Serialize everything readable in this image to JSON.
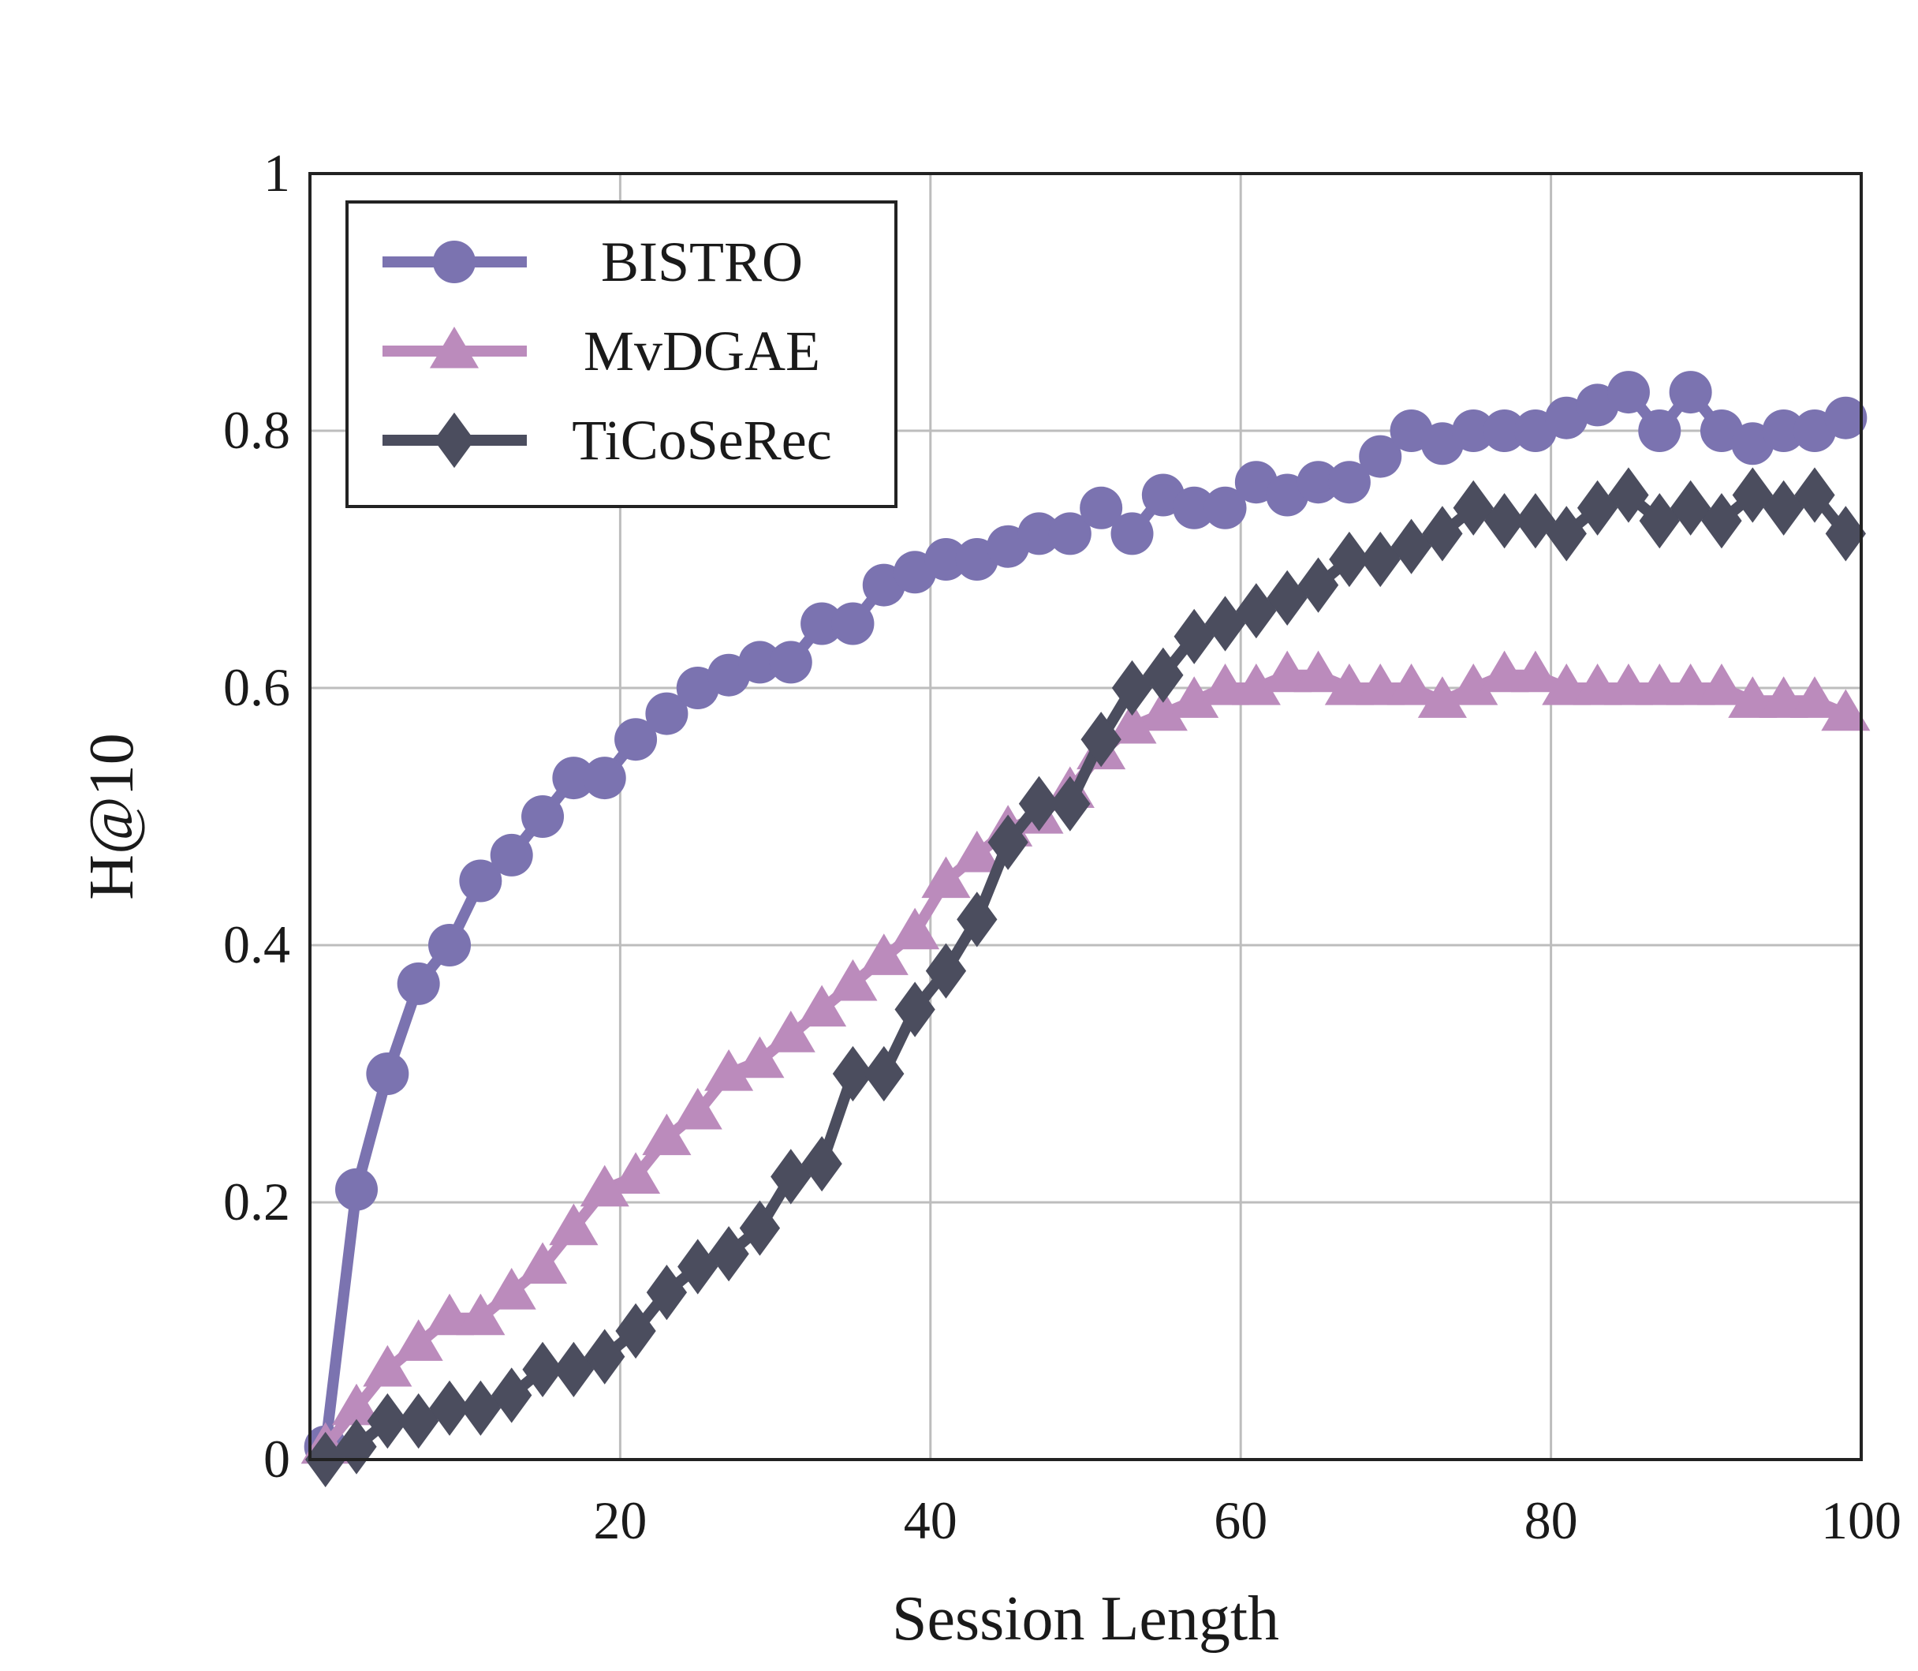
{
  "chart_data": {
    "type": "line",
    "xlabel": "Session Length",
    "ylabel": "H@10",
    "xlim": [
      0,
      100
    ],
    "ylim": [
      0,
      1
    ],
    "xticks": [
      20,
      40,
      60,
      80,
      100
    ],
    "yticks": [
      0,
      0.2,
      0.4,
      0.6,
      0.8,
      1
    ],
    "ytick_labels": [
      "0",
      "0.2",
      "0.4",
      "0.6",
      "0.8",
      "1"
    ],
    "grid": true,
    "legend_position": "top-left",
    "x": [
      1,
      3,
      5,
      7,
      9,
      11,
      13,
      15,
      17,
      19,
      21,
      23,
      25,
      27,
      29,
      31,
      33,
      35,
      37,
      39,
      41,
      43,
      45,
      47,
      49,
      51,
      53,
      55,
      57,
      59,
      61,
      63,
      65,
      67,
      69,
      71,
      73,
      75,
      77,
      79,
      81,
      83,
      85,
      87,
      89,
      91,
      93,
      95,
      97,
      99
    ],
    "series": [
      {
        "name": "BISTRO",
        "color": "#7b73b0",
        "marker": "circle",
        "values": [
          0.01,
          0.21,
          0.3,
          0.37,
          0.4,
          0.45,
          0.47,
          0.5,
          0.53,
          0.53,
          0.56,
          0.58,
          0.6,
          0.61,
          0.62,
          0.62,
          0.65,
          0.65,
          0.68,
          0.69,
          0.7,
          0.7,
          0.71,
          0.72,
          0.72,
          0.74,
          0.72,
          0.75,
          0.74,
          0.74,
          0.76,
          0.75,
          0.76,
          0.76,
          0.78,
          0.8,
          0.79,
          0.8,
          0.8,
          0.8,
          0.81,
          0.82,
          0.83,
          0.8,
          0.83,
          0.8,
          0.79,
          0.8,
          0.8,
          0.81
        ]
      },
      {
        "name": "MvDGAE",
        "color": "#bb8bbc",
        "marker": "triangle",
        "values": [
          0.01,
          0.04,
          0.07,
          0.09,
          0.11,
          0.11,
          0.13,
          0.15,
          0.18,
          0.21,
          0.22,
          0.25,
          0.27,
          0.3,
          0.31,
          0.33,
          0.35,
          0.37,
          0.39,
          0.41,
          0.45,
          0.47,
          0.49,
          0.5,
          0.52,
          0.55,
          0.57,
          0.58,
          0.59,
          0.6,
          0.6,
          0.61,
          0.61,
          0.6,
          0.6,
          0.6,
          0.59,
          0.6,
          0.61,
          0.61,
          0.6,
          0.6,
          0.6,
          0.6,
          0.6,
          0.6,
          0.59,
          0.59,
          0.59,
          0.58
        ]
      },
      {
        "name": "TiCoSeRec",
        "color": "#4b4d5e",
        "marker": "diamond",
        "values": [
          0.0,
          0.01,
          0.03,
          0.03,
          0.04,
          0.04,
          0.05,
          0.07,
          0.07,
          0.08,
          0.1,
          0.13,
          0.15,
          0.16,
          0.18,
          0.22,
          0.23,
          0.3,
          0.3,
          0.35,
          0.38,
          0.42,
          0.48,
          0.51,
          0.51,
          0.56,
          0.6,
          0.61,
          0.64,
          0.65,
          0.66,
          0.67,
          0.68,
          0.7,
          0.7,
          0.71,
          0.72,
          0.74,
          0.73,
          0.73,
          0.72,
          0.74,
          0.75,
          0.73,
          0.74,
          0.73,
          0.75,
          0.74,
          0.75,
          0.72
        ]
      }
    ]
  }
}
